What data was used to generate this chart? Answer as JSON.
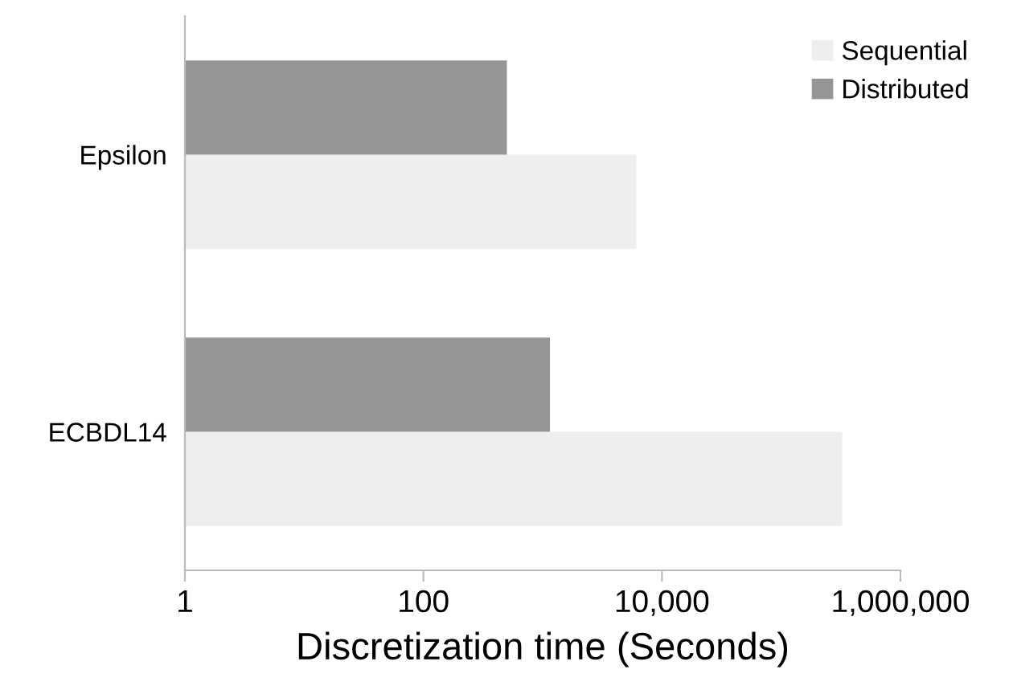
{
  "chart_data": {
    "type": "bar",
    "orientation": "horizontal",
    "log": "x",
    "xlabel": "Discretization time (Seconds)",
    "categories": [
      "Epsilon",
      "ECBDL14"
    ],
    "series": [
      {
        "name": "Sequential",
        "color": "#eeeeee",
        "values": [
          6100,
          325000
        ]
      },
      {
        "name": "Distributed",
        "color": "#959598",
        "values": [
          500,
          1150
        ]
      }
    ],
    "xlim": [
      1,
      1000000
    ],
    "xticks": [
      {
        "value": 1,
        "label": "1"
      },
      {
        "value": 100,
        "label": "100"
      },
      {
        "value": 10000,
        "label": "10,000"
      },
      {
        "value": 1000000,
        "label": "1,000,000"
      }
    ],
    "grid": false,
    "legend": "top right"
  }
}
